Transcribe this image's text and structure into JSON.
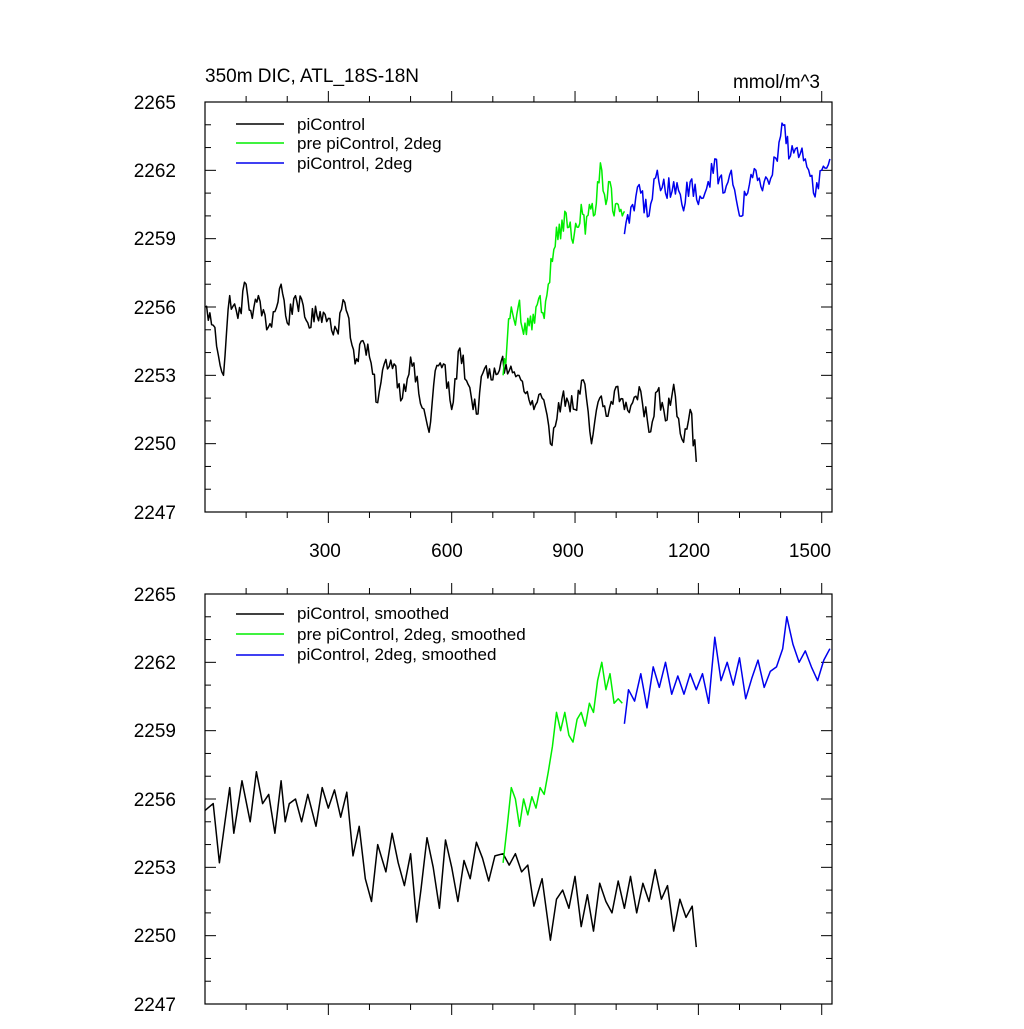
{
  "chart_data": [
    {
      "type": "line",
      "title": "350m DIC, ATL_18S-18N",
      "units_label": "mmol/m^3",
      "xlabel": "",
      "ylabel": "",
      "xlim": [
        0,
        1525
      ],
      "ylim": [
        2247,
        2265
      ],
      "x_ticks": [
        300,
        600,
        900,
        1200,
        1500
      ],
      "x_tick_labels": [
        "300",
        "600",
        "900",
        "1200",
        "1500"
      ],
      "y_ticks": [
        2247,
        2250,
        2253,
        2256,
        2259,
        2262,
        2265
      ],
      "y_tick_labels": [
        "2247",
        "2250",
        "2253",
        "2256",
        "2259",
        "2262",
        "2265"
      ],
      "grid": false,
      "legend_position": "top-left",
      "series": [
        {
          "name": "piControl",
          "color": "#000000",
          "noise": 0.45,
          "x": [
            0,
            20,
            45,
            60,
            80,
            100,
            115,
            130,
            150,
            170,
            185,
            200,
            220,
            250,
            280,
            300,
            320,
            340,
            350,
            365,
            380,
            400,
            420,
            440,
            460,
            480,
            500,
            520,
            545,
            560,
            580,
            600,
            620,
            640,
            660,
            680,
            700,
            720,
            740,
            760,
            780,
            800,
            820,
            840,
            860,
            880,
            900,
            920,
            940,
            960,
            980,
            1000,
            1020,
            1040,
            1060,
            1080,
            1100,
            1120,
            1140,
            1160,
            1180,
            1195
          ],
          "y": [
            2256.0,
            2255.2,
            2253.0,
            2256.5,
            2255.5,
            2257.0,
            2255.5,
            2256.5,
            2255.0,
            2255.8,
            2257.0,
            2255.3,
            2256.5,
            2255.3,
            2255.8,
            2255.5,
            2255.0,
            2256.2,
            2255.5,
            2253.5,
            2254.5,
            2253.8,
            2251.8,
            2253.7,
            2253.5,
            2252.0,
            2253.8,
            2252.2,
            2250.5,
            2253.2,
            2253.5,
            2251.5,
            2254.2,
            2252.6,
            2251.3,
            2253.3,
            2252.8,
            2253.6,
            2253.2,
            2253.0,
            2252.2,
            2251.5,
            2252.0,
            2250.0,
            2251.8,
            2252.0,
            2251.5,
            2252.8,
            2250.0,
            2252.0,
            2251.2,
            2252.5,
            2251.5,
            2251.8,
            2252.3,
            2250.5,
            2252.3,
            2251.0,
            2252.6,
            2250.2,
            2251.5,
            2249.2
          ]
        },
        {
          "name": "pre piControl, 2deg",
          "color": "#00ee00",
          "noise": 0.5,
          "x": [
            725,
            735,
            745,
            755,
            765,
            775,
            785,
            795,
            805,
            815,
            825,
            835,
            845,
            855,
            865,
            875,
            885,
            895,
            905,
            915,
            925,
            935,
            945,
            955,
            965,
            975,
            985,
            995,
            1005,
            1015,
            1020
          ],
          "y": [
            2253.0,
            2254.5,
            2256.0,
            2255.2,
            2256.3,
            2254.8,
            2255.5,
            2255.0,
            2256.0,
            2256.5,
            2255.5,
            2257.0,
            2258.0,
            2259.5,
            2259.0,
            2260.2,
            2259.5,
            2258.8,
            2259.5,
            2260.5,
            2259.2,
            2260.5,
            2260.0,
            2261.5,
            2262.0,
            2260.5,
            2261.5,
            2260.0,
            2260.5,
            2260.0,
            2260.2
          ]
        },
        {
          "name": "piControl, 2deg",
          "color": "#0000ee",
          "noise": 0.5,
          "x": [
            1020,
            1040,
            1060,
            1080,
            1100,
            1120,
            1140,
            1160,
            1180,
            1200,
            1220,
            1240,
            1260,
            1280,
            1300,
            1320,
            1340,
            1360,
            1380,
            1400,
            1410,
            1420,
            1440,
            1460,
            1480,
            1500,
            1520
          ],
          "y": [
            2259.2,
            2260.5,
            2261.0,
            2260.0,
            2262.0,
            2261.0,
            2261.5,
            2260.5,
            2261.5,
            2260.5,
            2261.2,
            2262.5,
            2261.0,
            2262.0,
            2260.0,
            2261.0,
            2262.0,
            2261.5,
            2261.8,
            2263.5,
            2264.0,
            2262.5,
            2263.0,
            2262.5,
            2261.0,
            2262.0,
            2262.5
          ]
        }
      ]
    },
    {
      "type": "line",
      "title": "",
      "xlabel": "",
      "ylabel": "",
      "xlim": [
        0,
        1525
      ],
      "ylim": [
        2247,
        2265
      ],
      "x_ticks": [
        300,
        600,
        900,
        1200,
        1500
      ],
      "x_tick_labels": [],
      "y_ticks": [
        2247,
        2250,
        2253,
        2256,
        2259,
        2262,
        2265
      ],
      "y_tick_labels": [
        "2247",
        "2250",
        "2253",
        "2256",
        "2259",
        "2262",
        "2265"
      ],
      "grid": false,
      "legend_position": "top-left",
      "series": [
        {
          "name": "piControl, smoothed",
          "color": "#000000",
          "noise": 0,
          "x": [
            0,
            20,
            35,
            50,
            60,
            70,
            90,
            110,
            125,
            140,
            155,
            170,
            185,
            195,
            205,
            220,
            235,
            250,
            270,
            285,
            300,
            315,
            330,
            345,
            360,
            375,
            390,
            405,
            420,
            440,
            455,
            470,
            485,
            500,
            515,
            525,
            540,
            555,
            570,
            585,
            600,
            615,
            630,
            645,
            660,
            675,
            690,
            705,
            725,
            740,
            755,
            770,
            785,
            800,
            820,
            840,
            855,
            870,
            885,
            900,
            915,
            930,
            945,
            960,
            975,
            990,
            1005,
            1020,
            1035,
            1050,
            1065,
            1080,
            1095,
            1110,
            1125,
            1140,
            1155,
            1170,
            1185,
            1195
          ],
          "y": [
            2255.5,
            2255.8,
            2253.2,
            2255.2,
            2256.5,
            2254.5,
            2256.8,
            2255.0,
            2257.2,
            2255.8,
            2256.2,
            2254.5,
            2256.8,
            2255.0,
            2255.8,
            2256.0,
            2255.0,
            2256.2,
            2254.8,
            2256.5,
            2255.6,
            2256.4,
            2255.2,
            2256.3,
            2253.5,
            2254.8,
            2252.5,
            2251.5,
            2254.0,
            2252.8,
            2254.5,
            2253.2,
            2252.2,
            2253.6,
            2250.6,
            2252.0,
            2254.3,
            2253.0,
            2251.2,
            2254.2,
            2253.0,
            2251.5,
            2253.3,
            2252.5,
            2254.1,
            2253.4,
            2252.4,
            2253.5,
            2253.6,
            2253.1,
            2253.6,
            2252.8,
            2253.1,
            2251.3,
            2252.5,
            2249.8,
            2251.6,
            2252.0,
            2251.2,
            2252.6,
            2250.4,
            2251.8,
            2250.2,
            2252.3,
            2251.5,
            2251.0,
            2252.4,
            2251.2,
            2252.6,
            2251.0,
            2252.3,
            2251.5,
            2252.9,
            2251.6,
            2252.2,
            2250.2,
            2251.6,
            2250.8,
            2251.3,
            2249.5
          ]
        },
        {
          "name": "pre piControl, 2deg, smoothed",
          "color": "#00ee00",
          "noise": 0,
          "x": [
            725,
            735,
            745,
            755,
            765,
            775,
            785,
            795,
            805,
            815,
            825,
            835,
            845,
            855,
            865,
            875,
            885,
            895,
            905,
            915,
            925,
            935,
            945,
            955,
            965,
            975,
            985,
            995,
            1005,
            1015
          ],
          "y": [
            2253.2,
            2254.8,
            2256.5,
            2256.0,
            2254.8,
            2256.0,
            2255.3,
            2256.1,
            2255.6,
            2256.5,
            2256.2,
            2257.2,
            2258.3,
            2259.8,
            2259.0,
            2259.8,
            2258.8,
            2258.5,
            2259.5,
            2259.8,
            2259.2,
            2260.2,
            2259.8,
            2261.2,
            2262.0,
            2260.8,
            2261.5,
            2260.2,
            2260.4,
            2260.2
          ]
        },
        {
          "name": "piControl, 2deg, smoothed",
          "color": "#0000ee",
          "noise": 0,
          "x": [
            1020,
            1030,
            1045,
            1060,
            1075,
            1090,
            1105,
            1120,
            1135,
            1150,
            1165,
            1180,
            1195,
            1210,
            1225,
            1240,
            1255,
            1270,
            1285,
            1300,
            1315,
            1330,
            1345,
            1360,
            1375,
            1390,
            1405,
            1415,
            1430,
            1445,
            1460,
            1475,
            1490,
            1505,
            1520
          ],
          "y": [
            2259.3,
            2260.8,
            2260.3,
            2261.5,
            2260.0,
            2261.8,
            2260.9,
            2262.0,
            2260.6,
            2261.4,
            2260.6,
            2261.5,
            2260.8,
            2261.5,
            2260.2,
            2263.1,
            2261.2,
            2262.0,
            2261.0,
            2262.2,
            2260.4,
            2261.3,
            2262.1,
            2260.9,
            2261.6,
            2261.8,
            2262.6,
            2264.0,
            2262.8,
            2262.0,
            2262.5,
            2261.8,
            2261.2,
            2262.1,
            2262.6
          ]
        }
      ]
    }
  ]
}
